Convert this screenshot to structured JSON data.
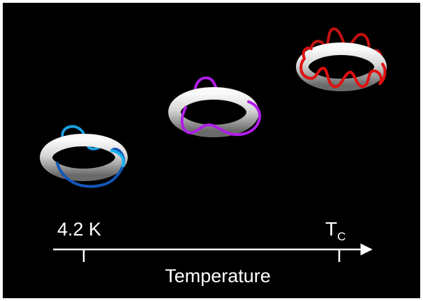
{
  "axis": {
    "left_label": "4.2 K",
    "right_label_main": "T",
    "right_label_sub": "C",
    "title": "Temperature"
  },
  "colors": {
    "background": "#000000",
    "torus_light": "#f2f2f2",
    "torus_dark": "#6e6e6e",
    "loop_low": "#1a9fe0",
    "loop_low_dark": "#1456b8",
    "loop_mid": "#b01ee8",
    "loop_high": "#e01010",
    "axis": "#ffffff"
  }
}
